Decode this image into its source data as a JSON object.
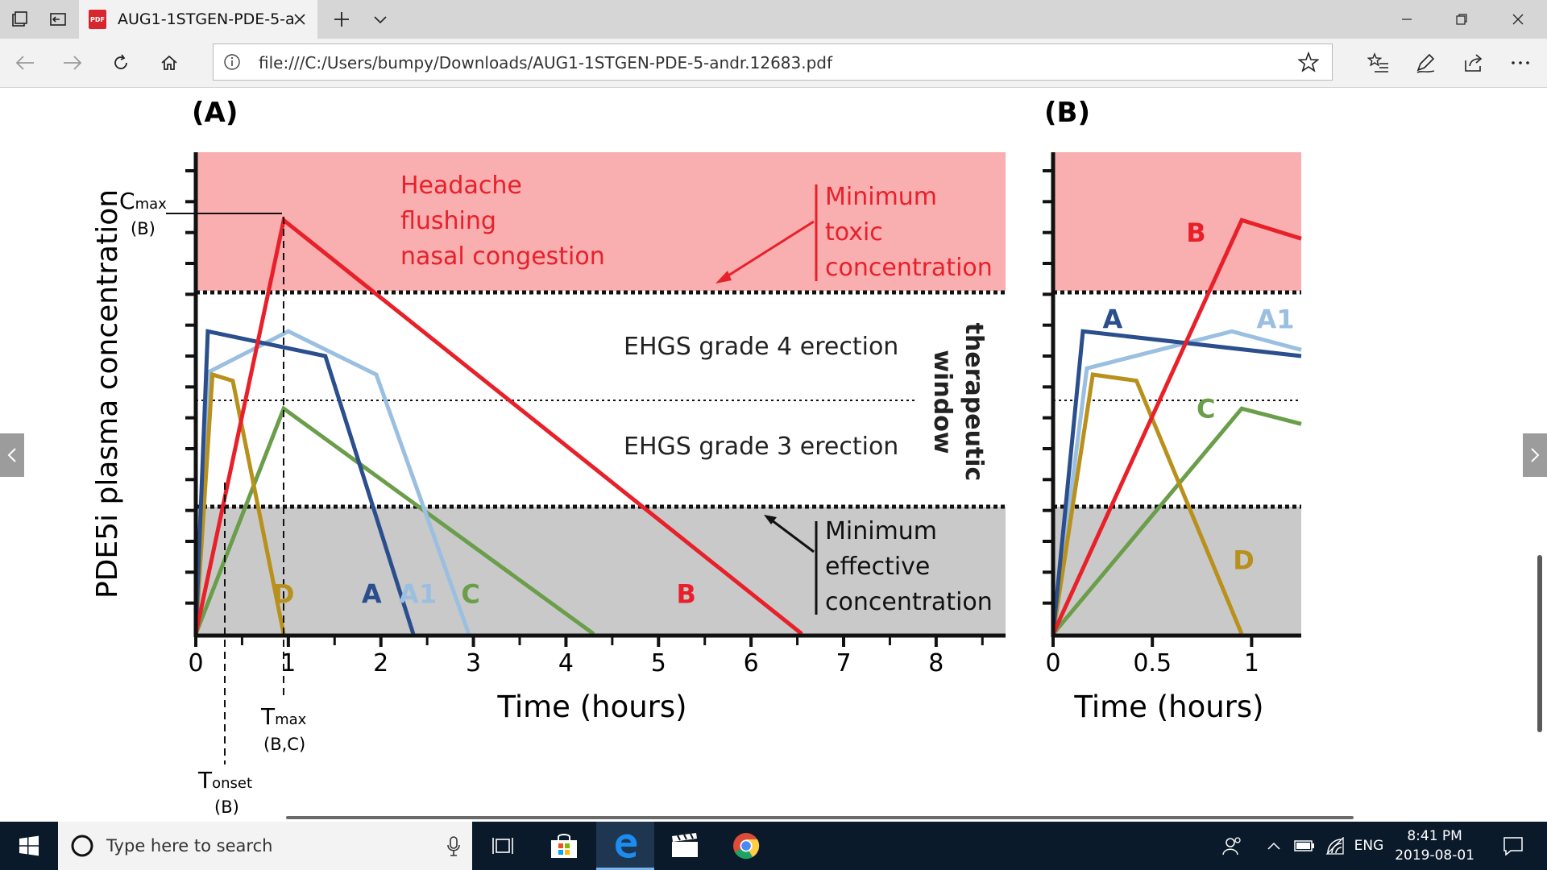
{
  "browser": {
    "tab_title": "AUG1-1STGEN-PDE-5-a",
    "tab_file_badge": "PDF",
    "url": "file:///C:/Users/bumpy/Downloads/AUG1-1STGEN-PDE-5-andr.12683.pdf"
  },
  "taskbar": {
    "search_placeholder": "Type here to search",
    "language": "ENG",
    "time": "8:41 PM",
    "date": "2019-08-01"
  },
  "colors": {
    "toxic_zone": "#f9aeb0",
    "ineffective_zone": "#c9c9c9",
    "A": "#2b4e8c",
    "A1": "#9bbfe0",
    "B": "#e8202a",
    "C": "#6a9e4a",
    "D": "#b8901c",
    "toxic_text": "#e8202a"
  },
  "figure": {
    "panel_a_label": "(A)",
    "panel_b_label": "(B)",
    "ylabel": "PDE5i plasma concentration",
    "xlabel": "Time (hours)",
    "cmax": {
      "main": "C",
      "sub": "max",
      "note": "(B)"
    },
    "tmax": {
      "main": "T",
      "sub": "max",
      "note": "(B,C)"
    },
    "tonset": {
      "main": "T",
      "sub": "onset",
      "note": "(B)"
    },
    "side_effects": [
      "Headache",
      "flushing",
      "nasal congestion"
    ],
    "min_toxic": [
      "Minimum",
      "toxic",
      "concentration"
    ],
    "min_effective": [
      "Minimum",
      "effective",
      "concentration"
    ],
    "grade4": "EHGS grade 4 erection",
    "grade3": "EHGS grade 3 erection",
    "therapeutic": [
      "therapeutic",
      "window"
    ]
  },
  "chart_data": [
    {
      "type": "line",
      "panel": "(A)",
      "xlabel": "Time (hours)",
      "ylabel": "PDE5i plasma concentration",
      "x_ticks": [
        "0",
        "1",
        "2",
        "3",
        "4",
        "5",
        "6",
        "7",
        "8"
      ],
      "xlim": [
        0,
        8.75
      ],
      "ylim": [
        0,
        7.8
      ],
      "thresholds": {
        "min_effective": 2.0,
        "grade_line": 3.75,
        "min_toxic": 5.5
      },
      "series": [
        {
          "name": "A",
          "points": [
            [
              0,
              0
            ],
            [
              0.13,
              4.9
            ],
            [
              1.4,
              4.5
            ],
            [
              2.35,
              0
            ]
          ]
        },
        {
          "name": "A1",
          "points": [
            [
              0,
              0
            ],
            [
              0.15,
              4.25
            ],
            [
              1.0,
              4.9
            ],
            [
              1.95,
              4.2
            ],
            [
              2.95,
              0
            ]
          ]
        },
        {
          "name": "B",
          "points": [
            [
              0,
              0
            ],
            [
              0.95,
              6.7
            ],
            [
              6.55,
              0
            ]
          ]
        },
        {
          "name": "C",
          "points": [
            [
              0,
              0
            ],
            [
              0.95,
              3.65
            ],
            [
              4.3,
              0
            ]
          ]
        },
        {
          "name": "D",
          "points": [
            [
              0,
              0
            ],
            [
              0.18,
              4.2
            ],
            [
              0.4,
              4.1
            ],
            [
              0.95,
              0
            ]
          ]
        }
      ]
    },
    {
      "type": "line",
      "panel": "(B)",
      "xlabel": "Time (hours)",
      "x_ticks": [
        "0",
        "0.5",
        "1"
      ],
      "xlim": [
        0,
        1.25
      ],
      "ylim": [
        0,
        7.8
      ],
      "thresholds": {
        "min_effective": 2.0,
        "grade_line": 3.75,
        "min_toxic": 5.5
      },
      "series": [
        {
          "name": "A",
          "points": [
            [
              0,
              0
            ],
            [
              0.15,
              4.9
            ],
            [
              1.25,
              4.5
            ]
          ]
        },
        {
          "name": "A1",
          "points": [
            [
              0,
              0
            ],
            [
              0.17,
              4.3
            ],
            [
              0.9,
              4.9
            ],
            [
              1.25,
              4.6
            ]
          ]
        },
        {
          "name": "B",
          "points": [
            [
              0,
              0
            ],
            [
              0.95,
              6.7
            ],
            [
              1.25,
              6.4
            ]
          ]
        },
        {
          "name": "C",
          "points": [
            [
              0,
              0
            ],
            [
              0.95,
              3.65
            ],
            [
              1.25,
              3.4
            ]
          ]
        },
        {
          "name": "D",
          "points": [
            [
              0,
              0
            ],
            [
              0.2,
              4.2
            ],
            [
              0.42,
              4.1
            ],
            [
              0.95,
              0
            ]
          ]
        }
      ]
    }
  ]
}
